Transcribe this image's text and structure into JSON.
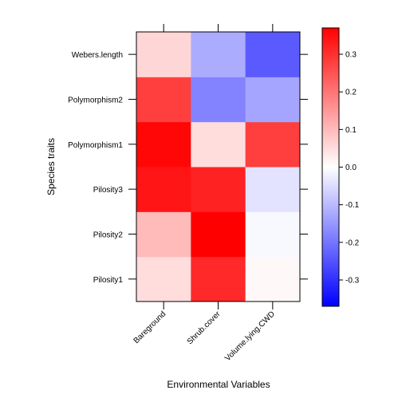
{
  "chart_data": {
    "type": "heatmap",
    "title": "",
    "xlabel": "Environmental Variables",
    "ylabel": "Species traits",
    "x_categories": [
      "Bareground",
      "Shrub.cover",
      "Volume.lying.CWD"
    ],
    "y_categories": [
      "Pilosity1",
      "Pilosity2",
      "Pilosity3",
      "Polymorphism1",
      "Polymorphism2",
      "Webers.length"
    ],
    "values": [
      [
        0.05,
        0.31,
        0.01
      ],
      [
        0.1,
        0.37,
        -0.01
      ],
      [
        0.34,
        0.32,
        -0.04
      ],
      [
        0.36,
        0.05,
        0.28
      ],
      [
        0.28,
        -0.18,
        -0.13
      ],
      [
        0.06,
        -0.12,
        -0.24
      ]
    ],
    "colorbar": {
      "range": [
        -0.37,
        0.37
      ],
      "ticks": [
        -0.3,
        -0.2,
        -0.1,
        0.0,
        0.1,
        0.2,
        0.3
      ],
      "tick_labels": [
        "-0.3",
        "-0.2",
        "-0.1",
        "0.0",
        "0.1",
        "0.2",
        "0.3"
      ],
      "low_color": "#0000ff",
      "mid_color": "#ffffff",
      "high_color": "#ff0000"
    }
  }
}
